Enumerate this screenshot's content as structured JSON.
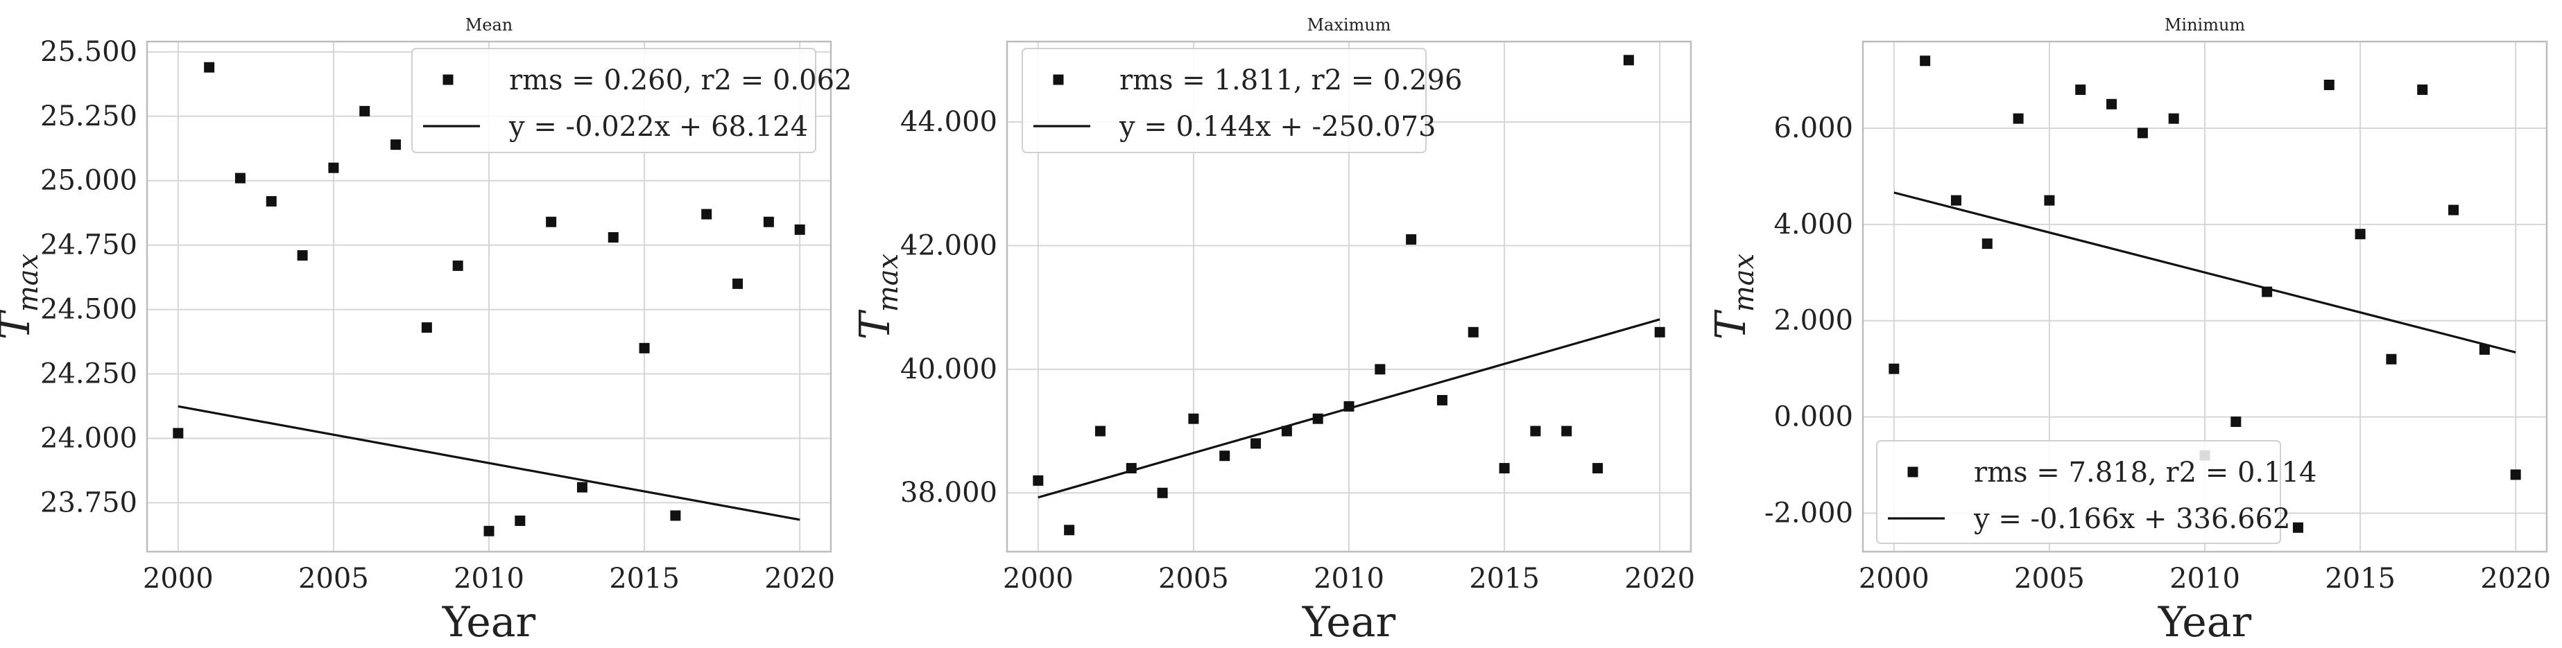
{
  "chart_data": [
    {
      "type": "scatter",
      "title": "Mean",
      "xlabel": "Year",
      "ylabel_main": "T",
      "ylabel_sub": "max",
      "xlim": [
        1999,
        2021
      ],
      "ylim": [
        23.56,
        25.54
      ],
      "xticks": [
        2000,
        2005,
        2010,
        2015,
        2020
      ],
      "yticks": [
        23.75,
        24.0,
        24.25,
        24.5,
        24.75,
        25.0,
        25.25,
        25.5
      ],
      "ytick_labels": [
        "23.750",
        "24.000",
        "24.250",
        "24.500",
        "24.750",
        "25.000",
        "25.250",
        "25.500"
      ],
      "legend_position": "top-right",
      "series": [
        {
          "name": "rms = 0.260, r2 = 0.062",
          "marker": "square",
          "color": "#111111",
          "x": [
            2000,
            2001,
            2002,
            2003,
            2004,
            2005,
            2006,
            2007,
            2008,
            2009,
            2010,
            2011,
            2012,
            2013,
            2014,
            2015,
            2016,
            2017,
            2018,
            2019,
            2020
          ],
          "y": [
            24.02,
            25.44,
            25.01,
            24.92,
            24.71,
            25.05,
            25.27,
            25.14,
            24.43,
            24.67,
            23.64,
            23.68,
            24.84,
            23.81,
            24.78,
            24.35,
            23.7,
            24.87,
            24.6,
            24.84,
            24.81
          ]
        }
      ],
      "fit": {
        "name": "y = -0.022x + 68.124",
        "slope": -0.022,
        "intercept": 68.124,
        "color": "#111111"
      }
    },
    {
      "type": "scatter",
      "title": "Maximum",
      "xlabel": "Year",
      "ylabel_main": "T",
      "ylabel_sub": "max",
      "xlim": [
        1999,
        2021
      ],
      "ylim": [
        37.05,
        45.3
      ],
      "xticks": [
        2000,
        2005,
        2010,
        2015,
        2020
      ],
      "yticks": [
        38.0,
        40.0,
        42.0,
        44.0
      ],
      "ytick_labels": [
        "38.000",
        "40.000",
        "42.000",
        "44.000"
      ],
      "legend_position": "top-left",
      "series": [
        {
          "name": "rms = 1.811, r2 = 0.296",
          "marker": "square",
          "color": "#111111",
          "x": [
            2000,
            2001,
            2002,
            2003,
            2004,
            2005,
            2006,
            2007,
            2008,
            2009,
            2010,
            2011,
            2012,
            2013,
            2014,
            2015,
            2016,
            2017,
            2018,
            2019,
            2020
          ],
          "y": [
            38.2,
            37.4,
            39.0,
            38.4,
            38.0,
            39.2,
            38.6,
            38.8,
            39.0,
            39.2,
            39.4,
            40.0,
            42.1,
            39.5,
            40.6,
            38.4,
            39.0,
            39.0,
            38.4,
            45.0,
            40.6
          ]
        }
      ],
      "fit": {
        "name": "y = 0.144x + -250.073",
        "slope": 0.144,
        "intercept": -250.073,
        "color": "#111111"
      }
    },
    {
      "type": "scatter",
      "title": "Minimum",
      "xlabel": "Year",
      "ylabel_main": "T",
      "ylabel_sub": "max",
      "xlim": [
        1999,
        2021
      ],
      "ylim": [
        -2.8,
        7.8
      ],
      "xticks": [
        2000,
        2005,
        2010,
        2015,
        2020
      ],
      "yticks": [
        -2.0,
        0.0,
        2.0,
        4.0,
        6.0
      ],
      "ytick_labels": [
        "-2.000",
        "0.000",
        "2.000",
        "4.000",
        "6.000"
      ],
      "legend_position": "bottom-left",
      "series": [
        {
          "name": "rms = 7.818, r2 = 0.114",
          "marker": "square",
          "color": "#111111",
          "x": [
            2000,
            2001,
            2002,
            2003,
            2004,
            2005,
            2006,
            2007,
            2008,
            2009,
            2010,
            2011,
            2012,
            2013,
            2014,
            2015,
            2016,
            2017,
            2018,
            2019,
            2020
          ],
          "y": [
            1.0,
            7.4,
            4.5,
            3.6,
            6.2,
            4.5,
            6.8,
            6.5,
            5.9,
            6.2,
            -0.8,
            -0.1,
            2.6,
            -2.3,
            6.9,
            3.8,
            1.2,
            6.8,
            4.3,
            1.4,
            -1.2
          ]
        }
      ],
      "fit": {
        "name": "y = -0.166x + 336.662",
        "slope": -0.166,
        "intercept": 336.662,
        "color": "#111111"
      }
    }
  ]
}
